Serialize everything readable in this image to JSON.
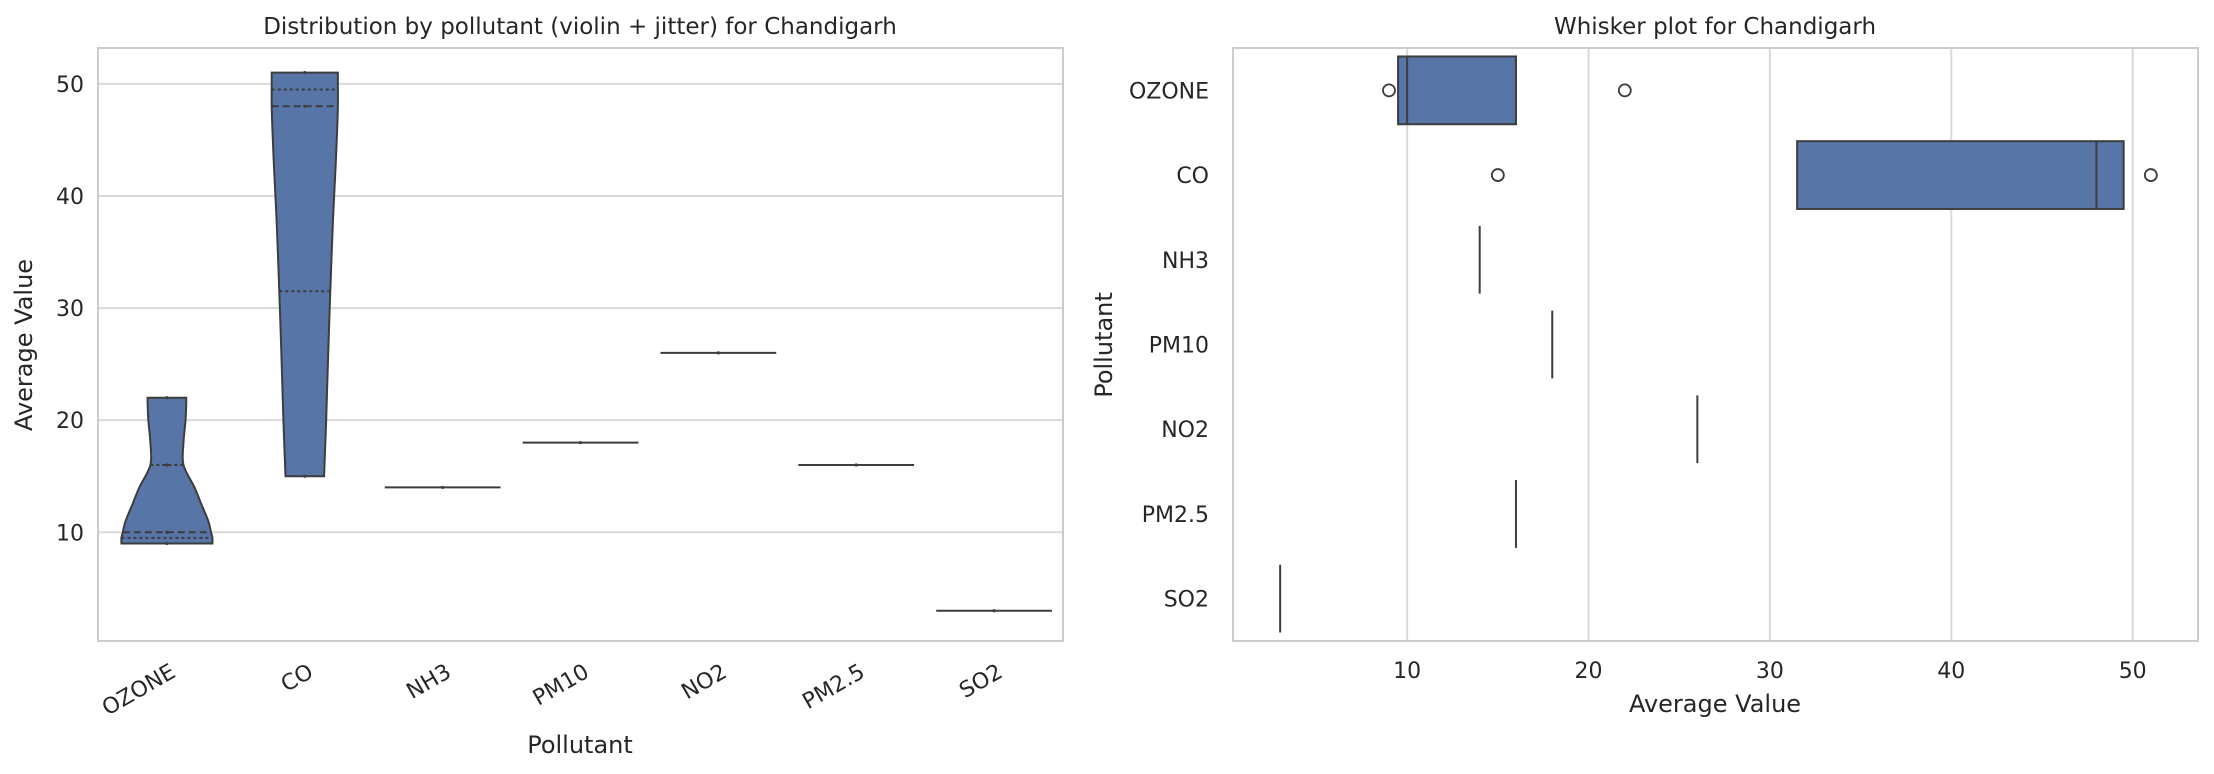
{
  "colors": {
    "fill": "#5875a8",
    "edge": "#3d3d3d",
    "grid": "#d9d9d9",
    "frame": "#cccccc",
    "text": "#262626"
  },
  "chart_data": [
    {
      "type": "violin",
      "title": "Distribution by pollutant (violin + jitter) for Chandigarh",
      "xlabel": "Pollutant",
      "ylabel": "Average Value",
      "categories": [
        "OZONE",
        "CO",
        "NH3",
        "PM10",
        "NO2",
        "PM2.5",
        "SO2"
      ],
      "ylim": [
        0.3,
        53.2
      ],
      "yticks": [
        10,
        20,
        30,
        40,
        50
      ],
      "grid": "horizontal",
      "distributions": [
        {
          "category": "OZONE",
          "min": 9,
          "max": 22,
          "q1": 9.5,
          "median": 10,
          "q3": 16,
          "points": [
            9,
            10,
            16,
            22
          ]
        },
        {
          "category": "CO",
          "min": 15,
          "max": 51,
          "q1": 31.5,
          "median": 48,
          "q3": 49.5,
          "points": [
            15,
            48,
            51
          ]
        },
        {
          "category": "NH3",
          "min": 14,
          "max": 14,
          "points": [
            14
          ]
        },
        {
          "category": "PM10",
          "min": 18,
          "max": 18,
          "points": [
            18
          ]
        },
        {
          "category": "NO2",
          "min": 26,
          "max": 26,
          "points": [
            26
          ]
        },
        {
          "category": "PM2.5",
          "min": 16,
          "max": 16,
          "points": [
            16
          ]
        },
        {
          "category": "SO2",
          "min": 3,
          "max": 3,
          "points": [
            3
          ]
        }
      ]
    },
    {
      "type": "box",
      "orientation": "horizontal",
      "title": "Whisker plot for Chandigarh",
      "xlabel": "Average Value",
      "ylabel": "Pollutant",
      "categories": [
        "OZONE",
        "CO",
        "NH3",
        "PM10",
        "NO2",
        "PM2.5",
        "SO2"
      ],
      "xlim": [
        0.4,
        53.6
      ],
      "xticks": [
        10,
        20,
        30,
        40,
        50
      ],
      "grid": "vertical",
      "boxes": [
        {
          "category": "OZONE",
          "q1": 9.5,
          "median": 10,
          "q3": 16,
          "whisker_low": 9.5,
          "whisker_high": 16,
          "outliers": [
            9,
            22
          ]
        },
        {
          "category": "CO",
          "q1": 31.5,
          "median": 48,
          "q3": 49.5,
          "whisker_low": 31.5,
          "whisker_high": 49.5,
          "outliers": [
            15,
            51
          ]
        },
        {
          "category": "NH3",
          "q1": 14,
          "median": 14,
          "q3": 14,
          "whisker_low": 14,
          "whisker_high": 14,
          "outliers": []
        },
        {
          "category": "PM10",
          "q1": 18,
          "median": 18,
          "q3": 18,
          "whisker_low": 18,
          "whisker_high": 18,
          "outliers": []
        },
        {
          "category": "NO2",
          "q1": 26,
          "median": 26,
          "q3": 26,
          "whisker_low": 26,
          "whisker_high": 26,
          "outliers": []
        },
        {
          "category": "PM2.5",
          "q1": 16,
          "median": 16,
          "q3": 16,
          "whisker_low": 16,
          "whisker_high": 16,
          "outliers": []
        },
        {
          "category": "SO2",
          "q1": 3,
          "median": 3,
          "q3": 3,
          "whisker_low": 3,
          "whisker_high": 3,
          "outliers": []
        }
      ]
    }
  ]
}
